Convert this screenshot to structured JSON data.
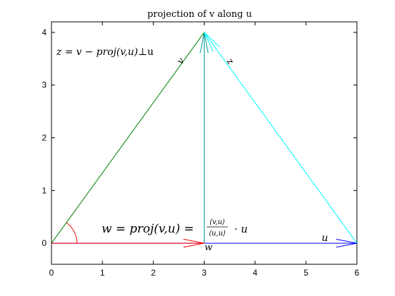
{
  "chart_data": {
    "type": "line",
    "title": "projection of v along u",
    "xlabel": "",
    "ylabel": "",
    "xlim": [
      0,
      6
    ],
    "ylim": [
      -0.4,
      4.2
    ],
    "xticks": [
      0,
      1,
      2,
      3,
      4,
      5,
      6
    ],
    "yticks": [
      0,
      1,
      2,
      3,
      4
    ],
    "xtick_labels": [
      "0",
      "1",
      "2",
      "3",
      "4",
      "5",
      "6"
    ],
    "ytick_labels": [
      "0",
      "1",
      "2",
      "3",
      "4"
    ],
    "grid": false,
    "vectors": [
      {
        "label": "v",
        "from": [
          0,
          0
        ],
        "to": [
          3,
          4
        ],
        "color": "#008000",
        "arrowhead": false
      },
      {
        "label": "u",
        "from": [
          0,
          0
        ],
        "to": [
          6,
          0
        ],
        "color": "#0000ff",
        "arrowhead": true
      },
      {
        "label": "w",
        "from": [
          0,
          0
        ],
        "to": [
          3,
          0
        ],
        "color": "#ff0000",
        "arrowhead": true
      },
      {
        "label": "z",
        "from": [
          3,
          0
        ],
        "to": [
          3,
          4
        ],
        "color": "#009a9a",
        "arrowhead": true
      },
      {
        "label": "",
        "from": [
          6,
          0
        ],
        "to": [
          3,
          4
        ],
        "color": "#00ffff",
        "arrowhead": true
      }
    ],
    "angle_arc": {
      "center": [
        0,
        0
      ],
      "radius": 0.5,
      "from_deg": 0,
      "to_deg": 53.13,
      "color": "#ff0000"
    },
    "annotations": {
      "z_formula_left": "z = v − proj(v,u)",
      "perp_u": "⊥u",
      "w_formula_left": "w = proj(v,u) =",
      "frac_numerator": "⟨v,u⟩",
      "frac_denominator": "⟨u,u⟩",
      "frac_tail": "· u",
      "label_v": "v",
      "label_z": "z",
      "label_w": "w",
      "label_u": "u"
    }
  }
}
